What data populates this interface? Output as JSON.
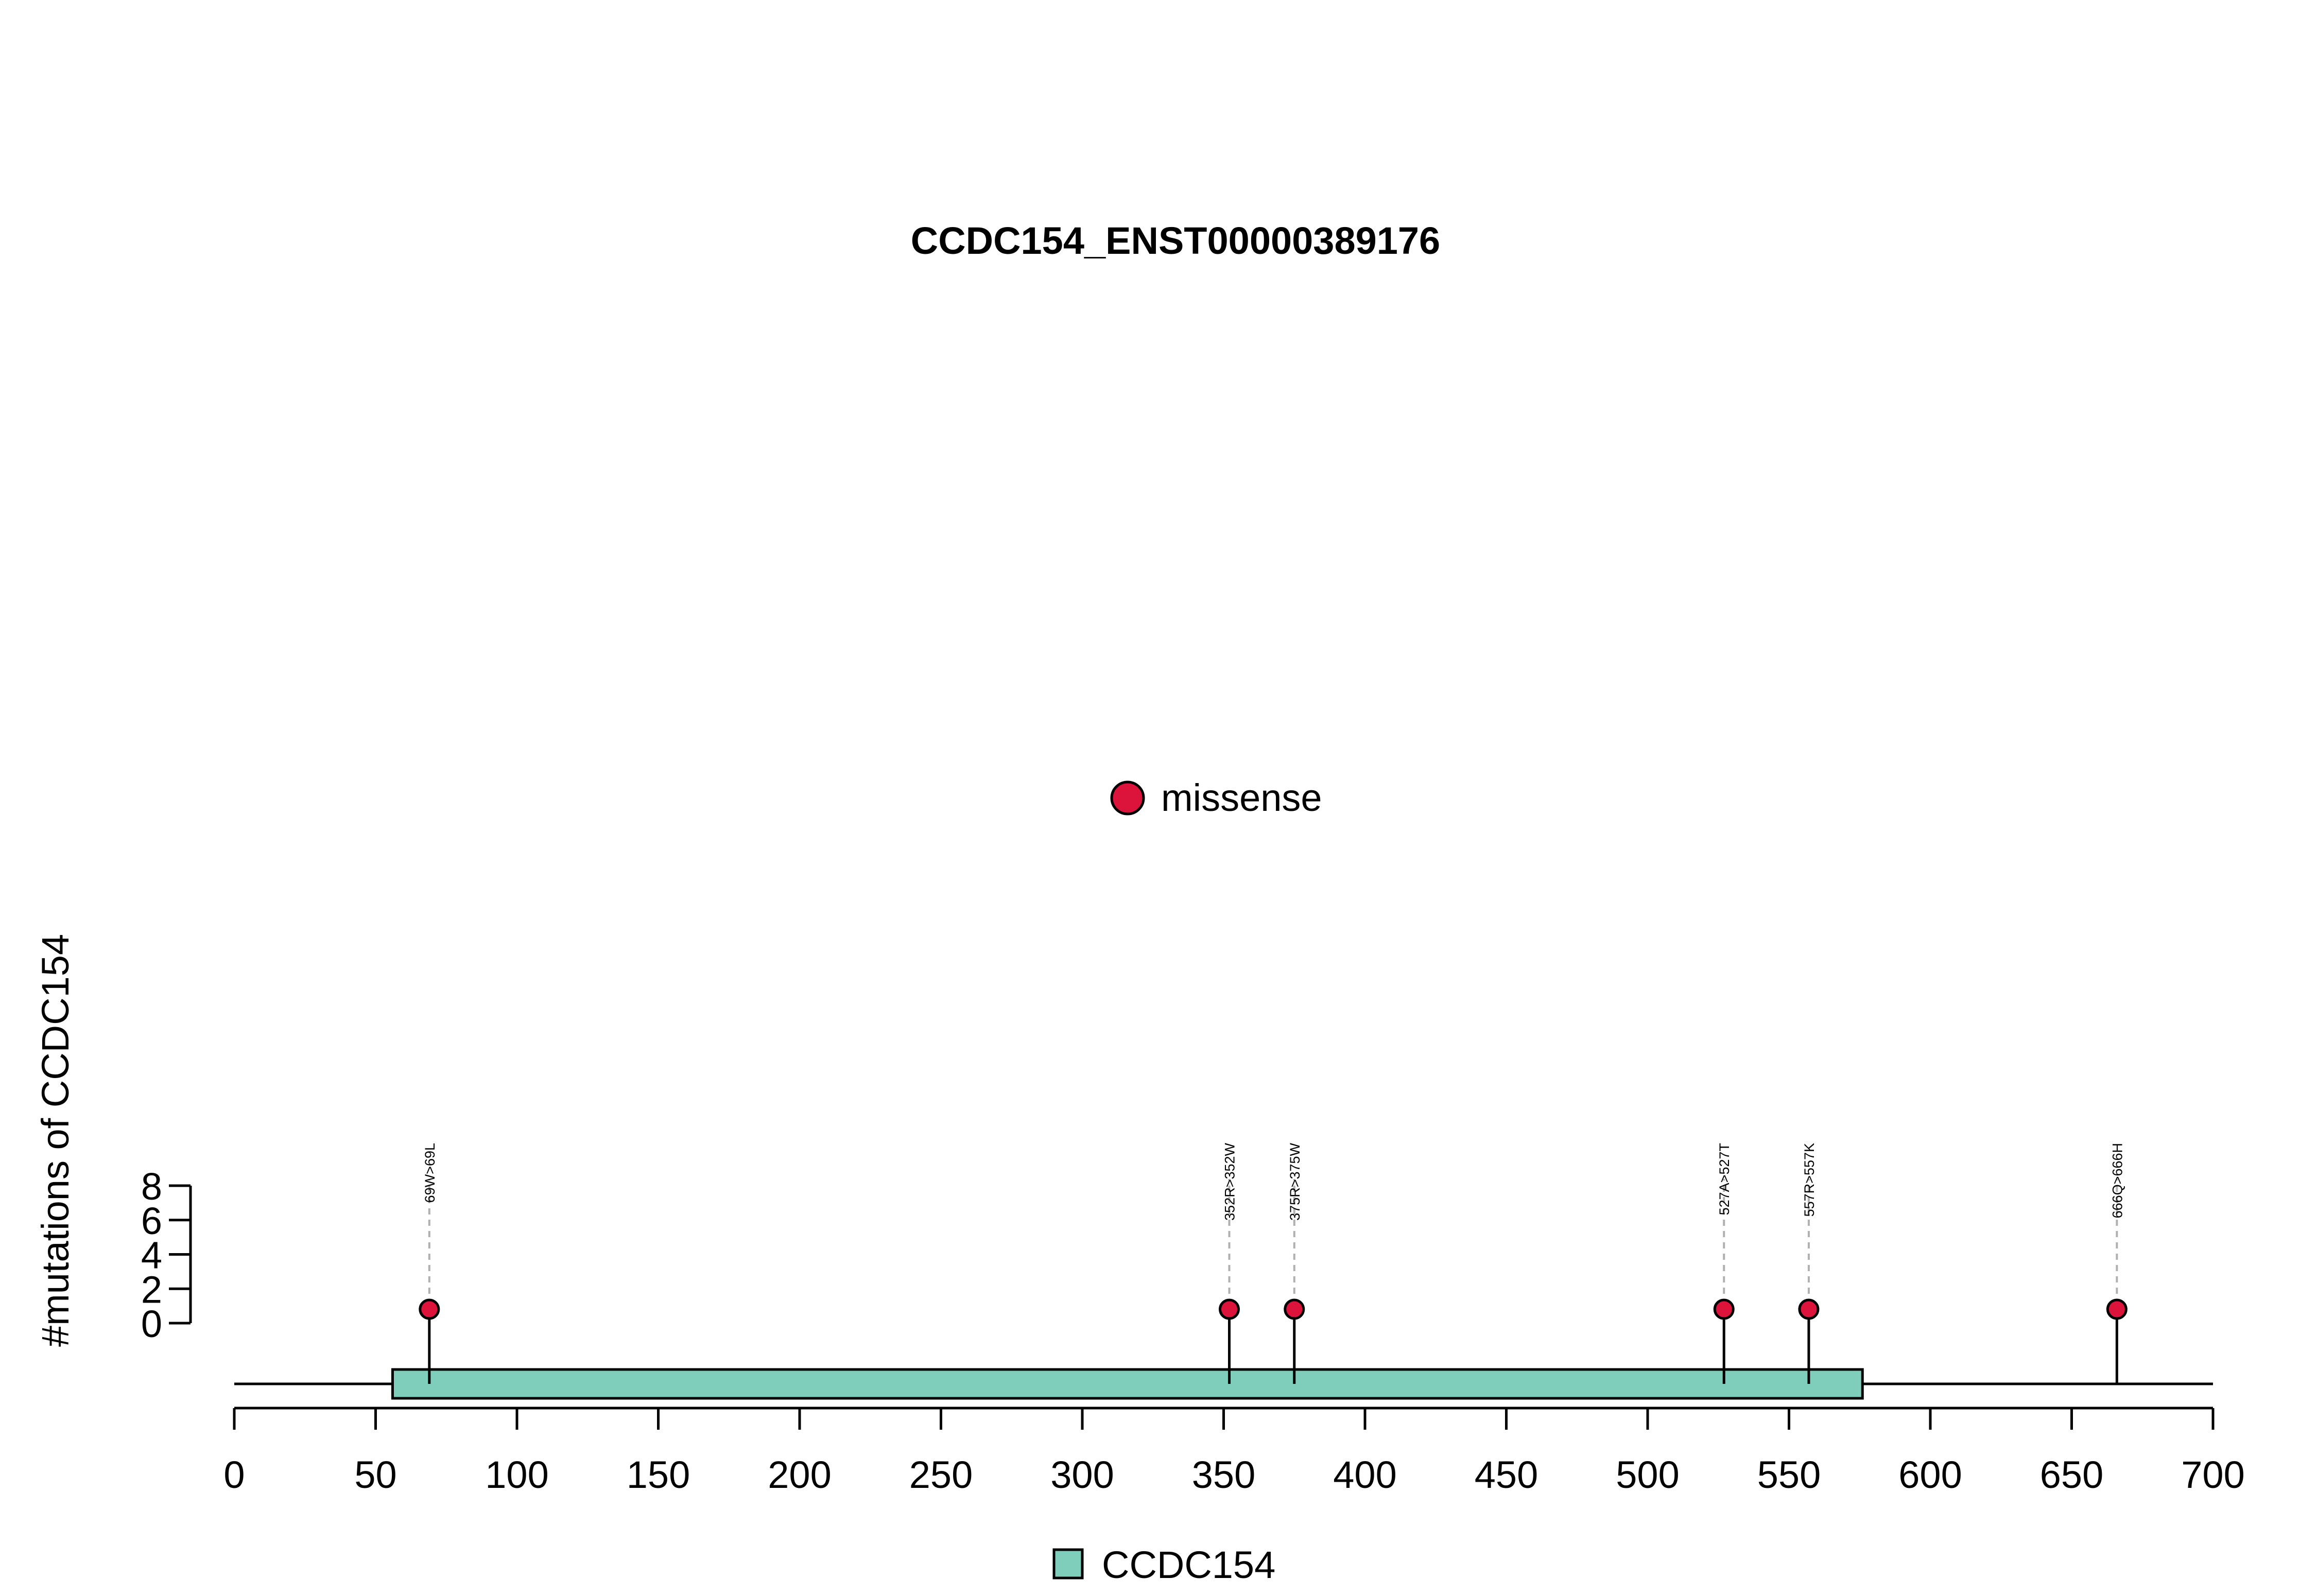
{
  "chart_data": {
    "type": "lollipop",
    "title": "CCDC154_ENST00000389176",
    "ylabel": "#mutations of CCDC154",
    "xlabel": "",
    "xlim": [
      0,
      700
    ],
    "x_ticks": [
      0,
      50,
      100,
      150,
      200,
      250,
      300,
      350,
      400,
      450,
      500,
      550,
      600,
      650,
      700
    ],
    "ylim": [
      0,
      8
    ],
    "y_ticks": [
      0,
      2,
      4,
      6,
      8
    ],
    "series": [
      {
        "name": "missense",
        "color": "#DC143C",
        "points": [
          {
            "x": 69,
            "y": 1,
            "label": "69W>69L"
          },
          {
            "x": 352,
            "y": 1,
            "label": "352R>352W"
          },
          {
            "x": 375,
            "y": 1,
            "label": "375R>375W"
          },
          {
            "x": 527,
            "y": 1,
            "label": "527A>527T"
          },
          {
            "x": 557,
            "y": 1,
            "label": "557R>557K"
          },
          {
            "x": 666,
            "y": 1,
            "label": "666Q>666H"
          }
        ]
      }
    ],
    "domains": [
      {
        "name": "CCDC154",
        "start": 56,
        "end": 576,
        "color": "#7FCDBB"
      }
    ],
    "protein_length": 700,
    "legend_top": {
      "label": "missense",
      "color": "#DC143C"
    },
    "legend_bottom": {
      "label": "CCDC154",
      "color": "#7FCDBB"
    }
  }
}
